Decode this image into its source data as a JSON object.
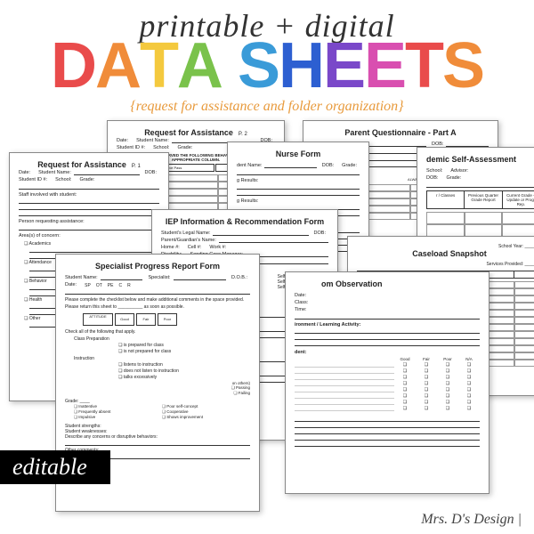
{
  "header": {
    "script": "printable + digital",
    "main_letters": [
      "D",
      "A",
      "T",
      "A",
      " ",
      "S",
      "H",
      "E",
      "E",
      "T",
      "S"
    ],
    "letter_colors": [
      "#e94b4b",
      "#f08c3a",
      "#f4c93e",
      "#7ac24b",
      "#000",
      "#3a9bd8",
      "#2d5fd1",
      "#7a48c9",
      "#d94fb0",
      "#e94b4b",
      "#f08c3a"
    ],
    "subtitle": "{request for assistance and folder organization}"
  },
  "badge": "editable",
  "credit": "Mrs. D's Design |",
  "sheets": {
    "req2": {
      "title": "Request for Assistance",
      "page": "P. 2",
      "f1": "Date:",
      "f2": "Student Name:",
      "f3": "DOB:",
      "f4": "Student ID #:",
      "f5": "School:",
      "f6": "Grade:",
      "note": "IF YOU HAVE OBSERVED THE FOLLOWING BEHAVIOR, CHECK THE APPROPRIATE COLUMN."
    },
    "req1": {
      "title": "Request for Assistance",
      "page": "P. 1",
      "f1": "Date:",
      "f2": "Student Name:",
      "f3": "DOB:",
      "f4": "Student ID #:",
      "f5": "School:",
      "f6": "Grade:",
      "s1": "Staff involved with student:",
      "s2": "Person requesting assistance:",
      "s3": "Area(s) of concern:",
      "items": [
        "Academics",
        "Attendance",
        "Behavior",
        "Health",
        "Other"
      ]
    },
    "parent": {
      "title": "Parent Questionnaire - Part A",
      "f1": "Student Name:",
      "f2": "DOB:",
      "f3": "Teacher:",
      "f4": "Grade:",
      "f5": "Please return to:",
      "note": "ou column.",
      "cols": [
        "ALWAYS",
        "MOSTLY",
        "SOM\nTIME",
        "NEVER"
      ],
      "col2": "YES | NO | N/A"
    },
    "nurse": {
      "title": "Nurse Form",
      "f1": "dent Name:",
      "f2": "DOB:",
      "f3": "Grade:",
      "s1": "g Results:",
      "s2": "g Results:",
      "s3": "ESSMENT"
    },
    "acad": {
      "title": "demic Self-Assessment",
      "f1": "School:",
      "f2": "Advisor:",
      "f3": "DOB:",
      "f4": "Grade:",
      "c1": "r / Classes",
      "c2": "Previous Quarter Grade Report",
      "c3": "Current Grade – Update or Prog. Rep."
    },
    "iep": {
      "title": "IEP Information & Recommendation Form",
      "f1": "Student's Legal Name:",
      "f2": "DOB:",
      "f3": "Parent/Guardian's Name:",
      "f4": "Home #:",
      "f5": "Cell #:",
      "f6": "Work #:",
      "f7": "Disability:",
      "f8": "Sending Case Manager:",
      "s1": "endation for the student next year:",
      "opts": [
        "ed",
        "Inclusion",
        "SelfCont",
        "ed",
        "Inclusion",
        "SelfCont",
        "Ed",
        "Inclusion",
        "SelfCont"
      ],
      "s2": "de services / testing for the student next year:",
      "opt2": "Adaptive",
      "sp": "SP",
      "c": "C",
      "s3": "formance:",
      "l1": "Test Used & Date:",
      "l2": "Test Used & Date:",
      "q1": "ave physical limitation?",
      "q2": "rrently receive Special Transportation?",
      "yes": "YES",
      "no": "NO",
      "s4": "pertinent information regarding this student:"
    },
    "obs": {
      "title": "om Observation",
      "f1": "Date:",
      "f2": "Class:",
      "f3": "Time:",
      "s1": "ironment / Learning Activity:",
      "s2": "dent:",
      "cols": [
        "Good",
        "Fair",
        "Poor",
        "N/A"
      ]
    },
    "caseload": {
      "title": "Caseload Snapshot",
      "f1": "School Year:",
      "f2": "Services Provided:",
      "cols": [
        "Student Name",
        "IEP",
        "Due Date",
        "",
        "",
        ""
      ]
    },
    "spec": {
      "title": "Specialist Progress Report Form",
      "f1": "Student Name:",
      "f2": "Specialist:",
      "f3": "D.O.B.:",
      "f4": "Date:",
      "sp": "SP",
      "ot": "OT",
      "pe": "PE",
      "c": "C",
      "r": "R",
      "note1": "Please complete the checklist below and make additional comments in the space provided.",
      "note2": "Please return this sheet to __________ as soon as possible.",
      "att": "ATTITUDE",
      "g": "Good",
      "f": "Fair",
      "p": "Poor",
      "s1": "Check all of the following that apply.",
      "i1": "Class Preparation",
      "b1": "is prepared for class",
      "b2": "is not prepared for class",
      "i2": "Instruction",
      "b3": "listens to instruction",
      "b4": "does not listen to instruction",
      "b5": "talks excessively",
      "s2": "on others)",
      "s3": "Passing",
      "s4": "Failing",
      "s5": "Grade:",
      "c1": "Inattentive",
      "c2": "Poor self-concept",
      "c3": "Frequently absent",
      "c4": "Cooperative",
      "c5": "Impulsive",
      "c6": "Shows improvement",
      "s6": "Student strengths:",
      "s7": "Student weaknesses:",
      "s8": "Describe any concerns or disruptive behaviors:",
      "s9": "Other comments:"
    }
  }
}
